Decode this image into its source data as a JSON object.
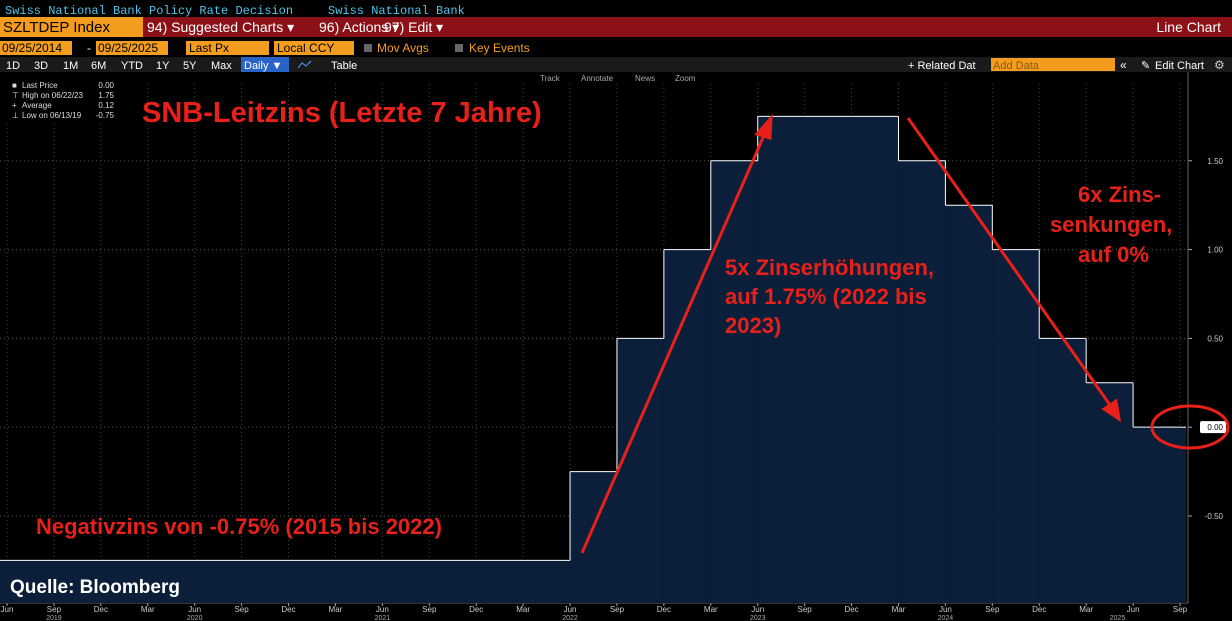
{
  "header": {
    "security_name": "Swiss National Bank Policy Rate Decision",
    "issuer": "Swiss National Bank"
  },
  "command_bar": {
    "ticker": "SZLTDEP Index",
    "menus": [
      "94) Suggested Charts ▾",
      "96) Actions ▾",
      "97) Edit ▾"
    ],
    "view": "Line Chart"
  },
  "settings_bar": {
    "start_date": "09/25/2014",
    "separator": "-",
    "end_date": "09/25/2025",
    "field": "Last Px",
    "currency": "Local CCY",
    "options": [
      "Mov Avgs",
      "Key Events"
    ]
  },
  "range_bar": {
    "ranges": [
      "1D",
      "3D",
      "1M",
      "6M",
      "YTD",
      "1Y",
      "5Y",
      "Max"
    ],
    "frequency": "Daily ▼",
    "table": "Table",
    "related": "+ Related Dat",
    "add_data": "Add Data",
    "edit": "Edit Chart"
  },
  "chart_tools": [
    "Track",
    "Annotate",
    "News",
    "Zoom"
  ],
  "chart_data": {
    "type": "line",
    "step": true,
    "title": "SNB-Leitzins (Letzte 7 Jahre)",
    "stats": [
      {
        "label": "Last Price",
        "value": "0.00"
      },
      {
        "label": "High on 06/22/23",
        "value": "1.75"
      },
      {
        "label": "Average",
        "value": "0.12"
      },
      {
        "label": "Low on 06/13/19",
        "value": "-0.75"
      }
    ],
    "series": [
      {
        "color": "#ffffff",
        "fill": "#0b1e3a",
        "x": [
          "2019-06",
          "2022-06",
          "2022-09",
          "2022-12",
          "2023-03",
          "2023-06",
          "2024-03",
          "2024-06",
          "2024-09",
          "2024-12",
          "2025-03",
          "2025-06",
          "2025-09"
        ],
        "values": [
          -0.75,
          -0.25,
          0.5,
          1.0,
          1.5,
          1.75,
          1.5,
          1.25,
          1.0,
          0.5,
          0.25,
          0,
          0
        ]
      }
    ],
    "xlim": [
      "2019-06",
      "2025-09"
    ],
    "xticks": [
      {
        "value": "2019-06",
        "label": "Jun"
      },
      {
        "value": "2019-09",
        "label": "Sep"
      },
      {
        "value": "2019-12",
        "label": "Dec"
      },
      {
        "value": "2020-03",
        "label": "Mar"
      },
      {
        "value": "2020-06",
        "label": "Jun"
      },
      {
        "value": "2020-09",
        "label": "Sep"
      },
      {
        "value": "2020-12",
        "label": "Dec"
      },
      {
        "value": "2021-03",
        "label": "Mar"
      },
      {
        "value": "2021-06",
        "label": "Jun"
      },
      {
        "value": "2021-09",
        "label": "Sep"
      },
      {
        "value": "2021-12",
        "label": "Dec"
      },
      {
        "value": "2022-03",
        "label": "Mar"
      },
      {
        "value": "2022-06",
        "label": "Jun"
      },
      {
        "value": "2022-09",
        "label": "Sep"
      },
      {
        "value": "2022-12",
        "label": "Dec"
      },
      {
        "value": "2023-03",
        "label": "Mar"
      },
      {
        "value": "2023-06",
        "label": "Jun"
      },
      {
        "value": "2023-09",
        "label": "Sep"
      },
      {
        "value": "2023-12",
        "label": "Dec"
      },
      {
        "value": "2024-03",
        "label": "Mar"
      },
      {
        "value": "2024-06",
        "label": "Jun"
      },
      {
        "value": "2024-09",
        "label": "Sep"
      },
      {
        "value": "2024-12",
        "label": "Dec"
      },
      {
        "value": "2025-03",
        "label": "Mar"
      },
      {
        "value": "2025-06",
        "label": "Jun"
      },
      {
        "value": "2025-09",
        "label": "Sep"
      }
    ],
    "year_labels": [
      {
        "value": "2019-09",
        "label": "2019"
      },
      {
        "value": "2020-06",
        "label": "2020"
      },
      {
        "value": "2021-06",
        "label": "2021"
      },
      {
        "value": "2022-06",
        "label": "2022"
      },
      {
        "value": "2023-06",
        "label": "2023"
      },
      {
        "value": "2024-06",
        "label": "2024"
      },
      {
        "value": "2025-05",
        "label": "2025"
      }
    ],
    "ylim": [
      -0.99,
      2.0
    ],
    "yticks": [
      {
        "value": 1.5,
        "label": "1.50"
      },
      {
        "value": 1.0,
        "label": "1.00"
      },
      {
        "value": 0.5,
        "label": "0.50"
      },
      {
        "value": 0,
        "label": "0.00"
      },
      {
        "value": -0.5,
        "label": "-0.50"
      }
    ],
    "grid": true,
    "annotations": [
      {
        "lines": [
          "5x Zinserhöhungen,",
          "auf 1.75% (2022 bis",
          "2023)"
        ]
      },
      {
        "lines": [
          "6x Zins-",
          "senkungen,",
          "auf 0%"
        ]
      },
      {
        "lines": [
          "Negativzins von -0.75% (2015 bis 2022)"
        ]
      }
    ],
    "source": "Quelle: Bloomberg"
  }
}
